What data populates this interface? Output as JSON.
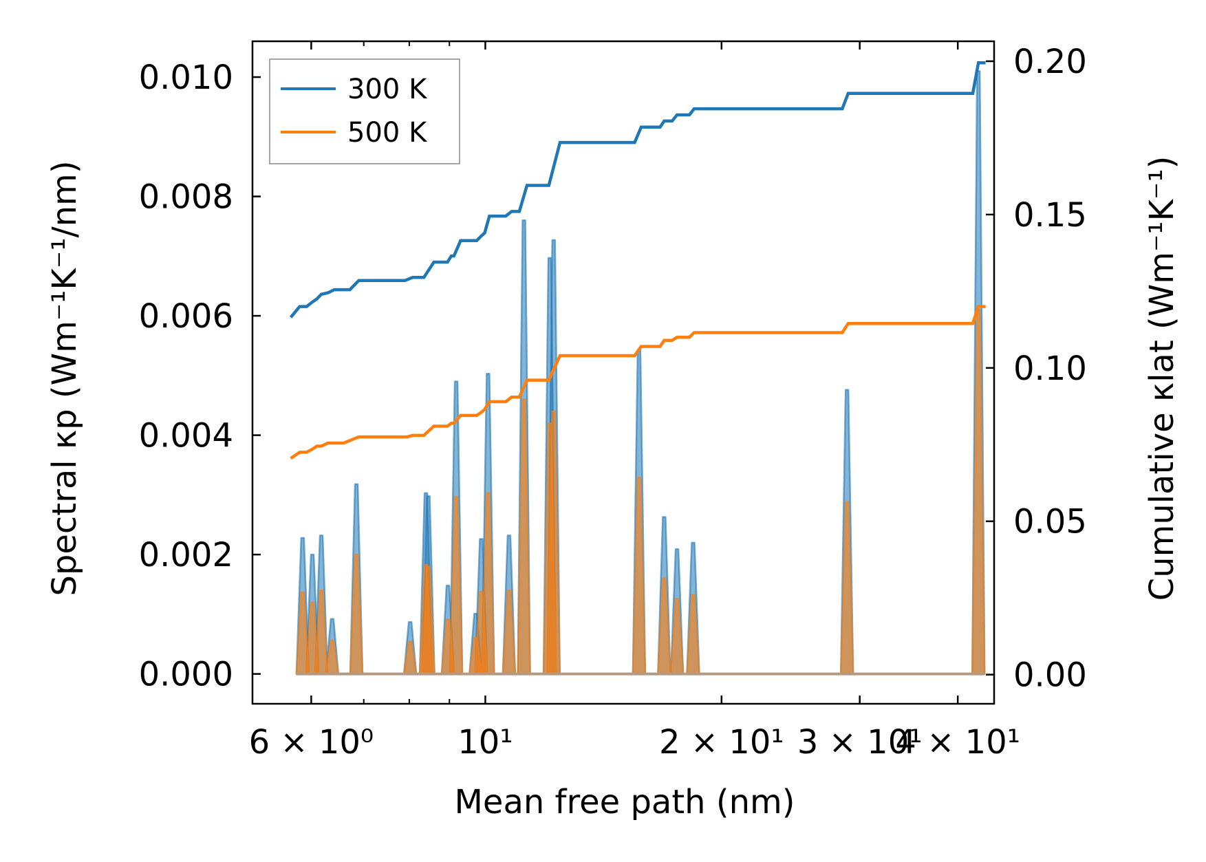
{
  "chart_data": {
    "type": "line",
    "title": "",
    "xlabel": "Mean free path (nm)",
    "ylabel": "Spectral κp (Wm⁻¹K⁻¹/nm)",
    "ylabel_right": "Cumulative κlat (Wm⁻¹K⁻¹)",
    "xscale": "log",
    "xlim": [
      5.05,
      44.5
    ],
    "ylim": [
      -0.0005,
      0.0106
    ],
    "ylim_right": [
      -0.0095,
      0.2065
    ],
    "x_ticks": [
      {
        "value": 6,
        "label": "6 × 10⁰"
      },
      {
        "value": 10,
        "label": "10¹"
      },
      {
        "value": 20,
        "label": "2 × 10¹"
      },
      {
        "value": 30,
        "label": "3 × 10¹"
      },
      {
        "value": 40,
        "label": "4 × 10¹"
      }
    ],
    "x_minor_ticks": [
      7,
      8,
      9
    ],
    "y_ticks": [
      {
        "value": 0.0,
        "label": "0.000"
      },
      {
        "value": 0.002,
        "label": "0.002"
      },
      {
        "value": 0.004,
        "label": "0.004"
      },
      {
        "value": 0.006,
        "label": "0.006"
      },
      {
        "value": 0.008,
        "label": "0.008"
      },
      {
        "value": 0.01,
        "label": "0.010"
      }
    ],
    "y_ticks_right": [
      {
        "value": 0.0,
        "label": "0.00"
      },
      {
        "value": 0.05,
        "label": "0.05"
      },
      {
        "value": 0.1,
        "label": "0.10"
      },
      {
        "value": 0.15,
        "label": "0.15"
      },
      {
        "value": 0.2,
        "label": "0.20"
      }
    ],
    "legend": {
      "position": "upper-left",
      "entries": [
        {
          "label": "300 K",
          "color": "#1f77b4"
        },
        {
          "label": "500 K",
          "color": "#ff7f0e"
        }
      ]
    },
    "spectral_series": [
      {
        "name": "300 K",
        "color": "#1f77b4",
        "fill_opacity": 0.55,
        "peaks": [
          [
            5.85,
            0.00228
          ],
          [
            6.02,
            0.002
          ],
          [
            6.18,
            0.00232
          ],
          [
            6.38,
            0.00092
          ],
          [
            6.85,
            0.00318
          ],
          [
            8.02,
            0.00087
          ],
          [
            8.4,
            0.00303
          ],
          [
            8.46,
            0.00298
          ],
          [
            8.96,
            0.00148
          ],
          [
            9.18,
            0.0049
          ],
          [
            9.72,
            0.00101
          ],
          [
            9.88,
            0.00226
          ],
          [
            10.08,
            0.00503
          ],
          [
            10.72,
            0.00232
          ],
          [
            11.2,
            0.0076
          ],
          [
            12.08,
            0.00697
          ],
          [
            12.22,
            0.00727
          ],
          [
            15.7,
            0.00543
          ],
          [
            16.9,
            0.00263
          ],
          [
            17.55,
            0.00209
          ],
          [
            18.4,
            0.0022
          ],
          [
            28.9,
            0.00476
          ],
          [
            42.5,
            0.0101
          ]
        ]
      },
      {
        "name": "500 K",
        "color": "#ff7f0e",
        "fill_opacity": 0.6,
        "peaks": [
          [
            5.85,
            0.00137
          ],
          [
            6.02,
            0.0012
          ],
          [
            6.18,
            0.0014
          ],
          [
            6.38,
            0.00056
          ],
          [
            6.85,
            0.002
          ],
          [
            8.02,
            0.00054
          ],
          [
            8.4,
            0.00183
          ],
          [
            8.46,
            0.0018
          ],
          [
            8.96,
            0.00091
          ],
          [
            9.18,
            0.00297
          ],
          [
            9.72,
            0.00061
          ],
          [
            9.88,
            0.00138
          ],
          [
            10.08,
            0.00303
          ],
          [
            10.72,
            0.0014
          ],
          [
            11.2,
            0.0046
          ],
          [
            12.08,
            0.0042
          ],
          [
            12.22,
            0.0044
          ],
          [
            15.7,
            0.00329
          ],
          [
            16.9,
            0.0016
          ],
          [
            17.55,
            0.00126
          ],
          [
            18.4,
            0.00133
          ],
          [
            28.9,
            0.00288
          ],
          [
            42.5,
            0.0061
          ]
        ]
      }
    ],
    "cumulative_series": [
      {
        "name": "300 K",
        "color": "#1f77b4",
        "points": [
          [
            5.65,
            0.1165
          ],
          [
            5.8,
            0.12
          ],
          [
            5.92,
            0.12
          ],
          [
            6.02,
            0.1215
          ],
          [
            6.1,
            0.1225
          ],
          [
            6.18,
            0.124
          ],
          [
            6.3,
            0.1245
          ],
          [
            6.42,
            0.1255
          ],
          [
            6.72,
            0.1255
          ],
          [
            6.9,
            0.1285
          ],
          [
            7.9,
            0.1285
          ],
          [
            8.08,
            0.1295
          ],
          [
            8.35,
            0.1295
          ],
          [
            8.6,
            0.1345
          ],
          [
            8.95,
            0.1345
          ],
          [
            9.05,
            0.1365
          ],
          [
            9.12,
            0.1365
          ],
          [
            9.3,
            0.1415
          ],
          [
            9.75,
            0.1415
          ],
          [
            9.88,
            0.143
          ],
          [
            9.98,
            0.144
          ],
          [
            10.12,
            0.1495
          ],
          [
            10.62,
            0.1495
          ],
          [
            10.8,
            0.151
          ],
          [
            11.05,
            0.151
          ],
          [
            11.3,
            0.1595
          ],
          [
            12.05,
            0.1595
          ],
          [
            12.45,
            0.1735
          ],
          [
            15.5,
            0.1735
          ],
          [
            15.8,
            0.1785
          ],
          [
            16.7,
            0.1785
          ],
          [
            16.9,
            0.1805
          ],
          [
            17.3,
            0.1805
          ],
          [
            17.55,
            0.1825
          ],
          [
            18.2,
            0.1825
          ],
          [
            18.45,
            0.1845
          ],
          [
            28.5,
            0.1845
          ],
          [
            29.0,
            0.1895
          ],
          [
            41.8,
            0.1895
          ],
          [
            42.5,
            0.1995
          ],
          [
            43.4,
            0.1995
          ]
        ]
      },
      {
        "name": "500 K",
        "color": "#ff7f0e",
        "points": [
          [
            5.65,
            0.0705
          ],
          [
            5.8,
            0.0725
          ],
          [
            5.92,
            0.0725
          ],
          [
            6.02,
            0.0735
          ],
          [
            6.1,
            0.0745
          ],
          [
            6.18,
            0.0745
          ],
          [
            6.3,
            0.0755
          ],
          [
            6.6,
            0.0755
          ],
          [
            6.9,
            0.0775
          ],
          [
            7.95,
            0.0775
          ],
          [
            8.08,
            0.078
          ],
          [
            8.35,
            0.078
          ],
          [
            8.6,
            0.081
          ],
          [
            8.95,
            0.081
          ],
          [
            9.05,
            0.082
          ],
          [
            9.12,
            0.082
          ],
          [
            9.3,
            0.0845
          ],
          [
            9.75,
            0.0845
          ],
          [
            9.88,
            0.0855
          ],
          [
            9.98,
            0.0865
          ],
          [
            10.12,
            0.089
          ],
          [
            10.62,
            0.089
          ],
          [
            10.8,
            0.0905
          ],
          [
            11.05,
            0.0905
          ],
          [
            11.3,
            0.096
          ],
          [
            12.05,
            0.096
          ],
          [
            12.45,
            0.104
          ],
          [
            15.5,
            0.104
          ],
          [
            15.8,
            0.107
          ],
          [
            16.7,
            0.107
          ],
          [
            16.9,
            0.109
          ],
          [
            17.3,
            0.109
          ],
          [
            17.55,
            0.11
          ],
          [
            18.2,
            0.11
          ],
          [
            18.45,
            0.1115
          ],
          [
            28.5,
            0.1115
          ],
          [
            29.0,
            0.1145
          ],
          [
            41.8,
            0.1145
          ],
          [
            42.5,
            0.12
          ],
          [
            43.4,
            0.12
          ]
        ]
      }
    ]
  }
}
